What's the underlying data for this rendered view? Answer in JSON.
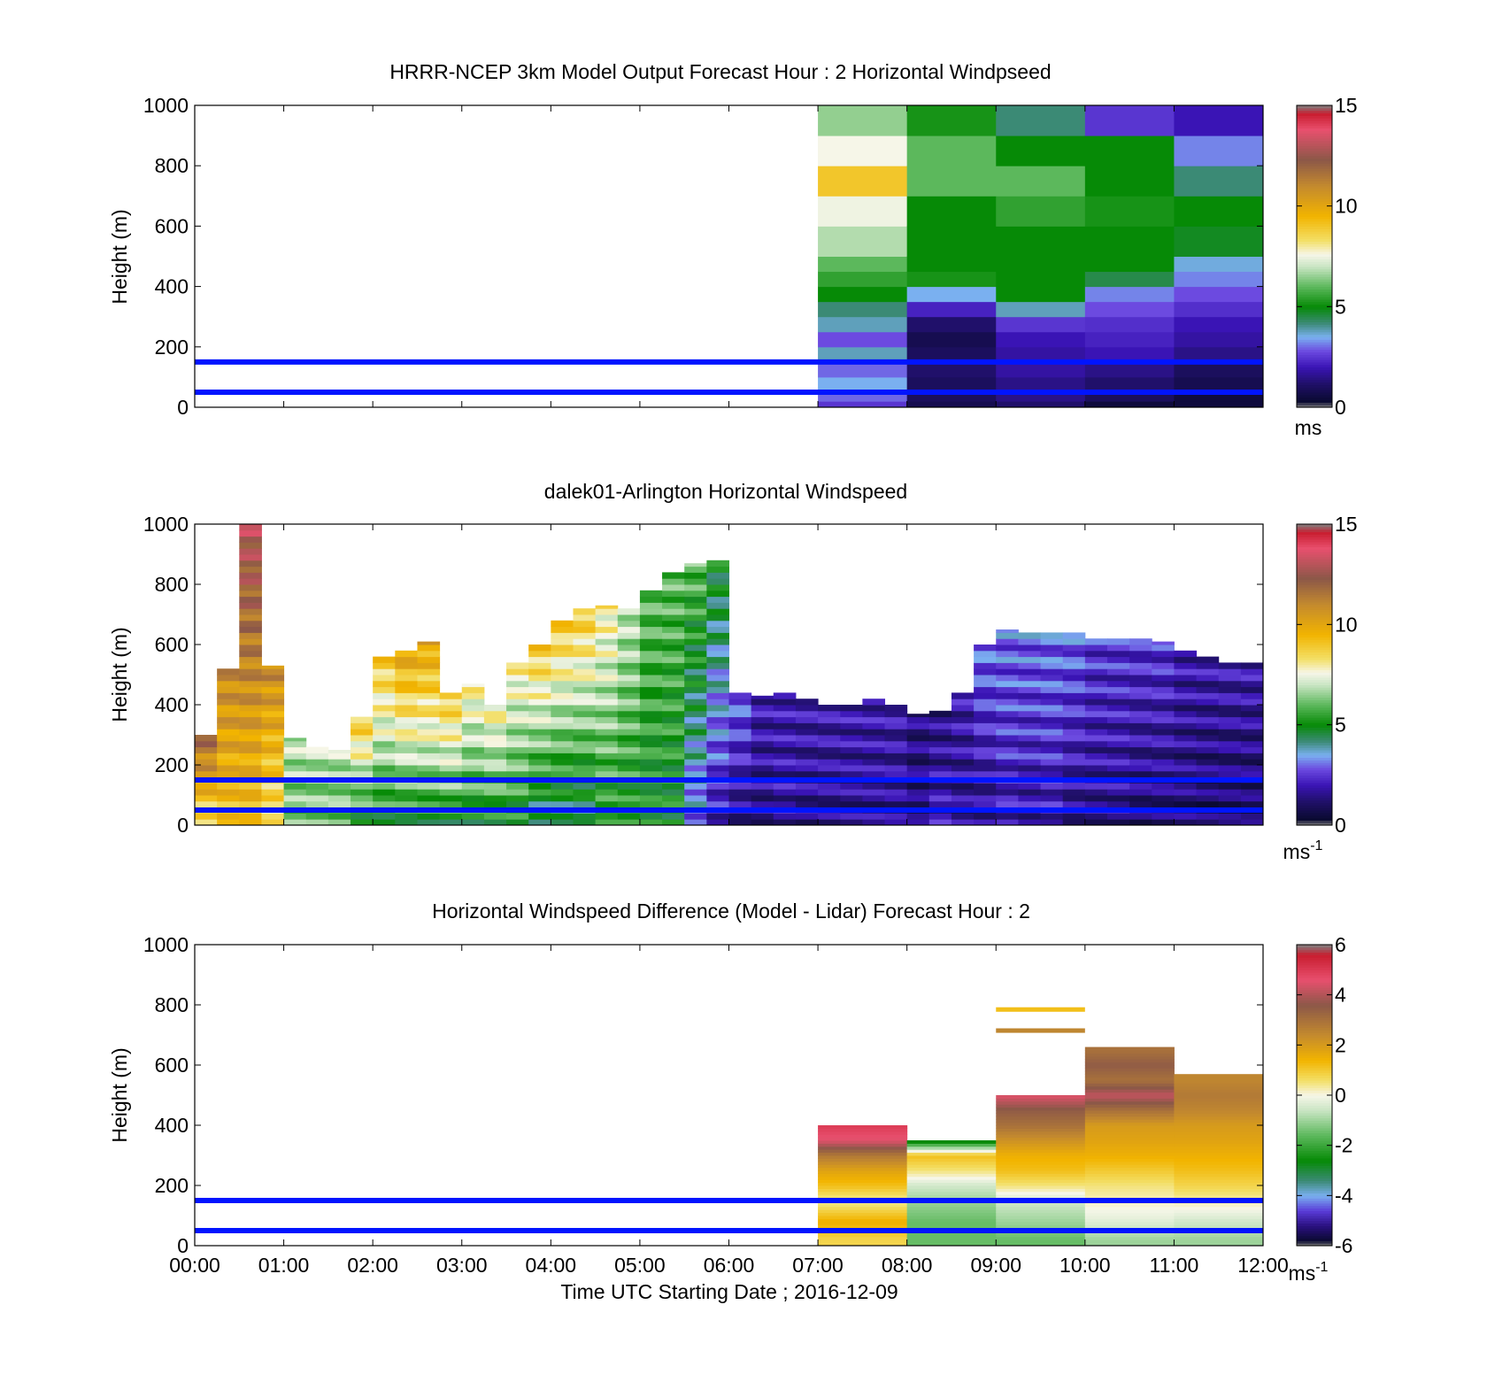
{
  "figure": {
    "xlabel": "Time UTC  Starting Date ; 2016-12-09",
    "ref_lines_color": "#0014ff"
  },
  "chart_data": [
    {
      "type": "heatmap",
      "title": "HRRR-NCEP 3km Model Output   Forecast Hour : 2 Horizontal Windpseed",
      "xlabel": "",
      "ylabel": "Height (m)",
      "xlim": [
        "00:00",
        "12:00"
      ],
      "ylim": [
        0,
        1000
      ],
      "x_ticks": [
        "00:00",
        "01:00",
        "02:00",
        "03:00",
        "04:00",
        "05:00",
        "06:00",
        "07:00",
        "08:00",
        "09:00",
        "10:00",
        "11:00",
        "12:00"
      ],
      "y_ticks": [
        "0",
        "200",
        "400",
        "600",
        "800",
        "1000"
      ],
      "grid": false,
      "reference_lines_m": [
        50,
        150
      ],
      "colorbar": {
        "min": 0,
        "max": 15,
        "ticks": [
          "0",
          "5",
          "10",
          "15"
        ],
        "unit": "ms",
        "unit_sup": ""
      },
      "hourly_columns": {
        "x_start": [
          "07:00",
          "08:00",
          "09:00",
          "10:00",
          "11:00"
        ],
        "height_edges_m": [
          0,
          20,
          50,
          100,
          150,
          200,
          250,
          300,
          350,
          400,
          450,
          500,
          600,
          700,
          800,
          900,
          1000
        ],
        "values_ms": [
          [
            2.5,
            3.0,
            3.5,
            3.0,
            3.8,
            2.8,
            3.8,
            4.2,
            5.0,
            5.5,
            6.0,
            6.8,
            7.5,
            9.0,
            7.6,
            6.5
          ],
          [
            0.8,
            1.0,
            1.0,
            1.2,
            1.0,
            0.8,
            1.2,
            2.2,
            3.5,
            5.2,
            5.0,
            5.0,
            5.0,
            6.0,
            6.0,
            5.2
          ],
          [
            1.2,
            1.5,
            1.5,
            1.8,
            1.8,
            2.0,
            2.5,
            3.8,
            5.0,
            5.0,
            5.0,
            5.0,
            5.5,
            6.0,
            5.0,
            4.2
          ],
          [
            0.5,
            1.0,
            1.2,
            1.5,
            2.0,
            2.2,
            2.4,
            2.8,
            3.2,
            4.5,
            5.0,
            5.0,
            5.2,
            5.0,
            5.0,
            2.5
          ],
          [
            0.5,
            0.5,
            0.8,
            1.0,
            1.5,
            1.8,
            2.0,
            2.4,
            2.8,
            3.2,
            3.6,
            4.8,
            5.0,
            4.2,
            3.2,
            2.0
          ]
        ]
      }
    },
    {
      "type": "heatmap",
      "title": "dalek01-Arlington  Horizontal Windspeed",
      "xlabel": "",
      "ylabel": "Height (m)",
      "xlim": [
        "00:00",
        "12:00"
      ],
      "ylim": [
        0,
        1000
      ],
      "x_ticks": [
        "00:00",
        "01:00",
        "02:00",
        "03:00",
        "04:00",
        "05:00",
        "06:00",
        "07:00",
        "08:00",
        "09:00",
        "10:00",
        "11:00",
        "12:00"
      ],
      "y_ticks": [
        "0",
        "200",
        "400",
        "600",
        "800",
        "1000"
      ],
      "grid": false,
      "reference_lines_m": [
        50,
        150
      ],
      "colorbar": {
        "min": 0,
        "max": 15,
        "ticks": [
          "0",
          "5",
          "10",
          "15"
        ],
        "unit": "ms",
        "unit_sup": "-1"
      },
      "profiles_approx": {
        "interval_minutes": 15,
        "x_start": [
          "00:00",
          "00:15",
          "00:30",
          "00:45",
          "01:00",
          "01:15",
          "01:30",
          "01:45",
          "02:00",
          "02:15",
          "02:30",
          "02:45",
          "03:00",
          "03:15",
          "03:30",
          "03:45",
          "04:00",
          "04:15",
          "04:30",
          "04:45",
          "05:00",
          "05:15",
          "05:30",
          "05:45",
          "06:00",
          "06:15",
          "06:30",
          "06:45",
          "07:00",
          "07:15",
          "07:30",
          "07:45",
          "08:00",
          "08:15",
          "08:30",
          "08:45",
          "09:00",
          "09:15",
          "09:30",
          "09:45",
          "10:00",
          "10:15",
          "10:30",
          "10:45",
          "11:00",
          "11:15",
          "11:30",
          "11:45"
        ],
        "top_m": [
          300,
          520,
          1000,
          530,
          290,
          260,
          250,
          360,
          560,
          580,
          610,
          440,
          470,
          400,
          540,
          600,
          680,
          720,
          730,
          720,
          780,
          840,
          870,
          880,
          440,
          430,
          440,
          420,
          400,
          400,
          420,
          400,
          370,
          380,
          440,
          600,
          650,
          640,
          640,
          640,
          620,
          620,
          620,
          610,
          580,
          560,
          540,
          540
        ],
        "bottom_speed_ms": [
          8,
          9,
          9,
          8,
          6,
          6,
          6,
          5,
          5,
          5,
          5,
          5,
          5,
          5,
          5,
          4,
          4,
          4,
          5,
          5,
          5,
          5,
          3,
          2,
          1.5,
          1.5,
          1.8,
          1.5,
          1.5,
          1.5,
          1.5,
          1.5,
          1.2,
          2,
          1.5,
          1.5,
          2,
          1.8,
          2,
          1.5,
          1.5,
          1.5,
          1.2,
          1.2,
          1.2,
          1.0,
          1.0,
          1.0
        ],
        "top_speed_ms": [
          12,
          11,
          13,
          11,
          7,
          7,
          7,
          9,
          9,
          10,
          10,
          9,
          8,
          8,
          8,
          9,
          9,
          9,
          8,
          7,
          6,
          6,
          6,
          5,
          3,
          2,
          2,
          2,
          2,
          2,
          2,
          2,
          1.5,
          1.5,
          2,
          3,
          3,
          3,
          3,
          3,
          2.5,
          2.5,
          2.5,
          2.5,
          2,
          2,
          2,
          2
        ]
      }
    },
    {
      "type": "heatmap",
      "title": "Horizontal Windspeed Difference (Model - Lidar) Forecast Hour : 2",
      "xlabel": "Time UTC  Starting Date ; 2016-12-09",
      "ylabel": "Height (m)",
      "xlim": [
        "00:00",
        "12:00"
      ],
      "ylim": [
        0,
        1000
      ],
      "x_ticks": [
        "00:00",
        "01:00",
        "02:00",
        "03:00",
        "04:00",
        "05:00",
        "06:00",
        "07:00",
        "08:00",
        "09:00",
        "10:00",
        "11:00",
        "12:00"
      ],
      "y_ticks": [
        "0",
        "200",
        "400",
        "600",
        "800",
        "1000"
      ],
      "grid": false,
      "reference_lines_m": [
        50,
        150
      ],
      "colorbar": {
        "min": -6,
        "max": 6,
        "ticks": [
          "-6",
          "-4",
          "-2",
          "0",
          "2",
          "4",
          "6"
        ],
        "unit": "ms",
        "unit_sup": "-1"
      },
      "hourly_columns": {
        "x_start": [
          "07:00",
          "08:00",
          "09:00",
          "10:00",
          "11:00"
        ],
        "top_m": [
          400,
          350,
          500,
          660,
          570
        ],
        "profiles": [
          {
            "heights_m": [
              20,
              80,
              150,
              200,
              250,
              300,
              350,
              400
            ],
            "values_ms": [
              0.8,
              1.5,
              0.3,
              1.2,
              1.8,
              2.8,
              4.5,
              5.0
            ]
          },
          {
            "heights_m": [
              20,
              80,
              150,
              200,
              250,
              300,
              350
            ],
            "values_ms": [
              -1.5,
              -1.5,
              -1.0,
              -0.5,
              0.5,
              1.2,
              -3.0
            ]
          },
          {
            "heights_m": [
              20,
              80,
              150,
              200,
              250,
              300,
              350,
              400,
              450,
              500
            ],
            "values_ms": [
              -1.5,
              -1.0,
              -0.5,
              0.5,
              1.2,
              1.5,
              2.2,
              3.0,
              3.5,
              4.5
            ]
          },
          {
            "heights_m": [
              20,
              80,
              150,
              200,
              250,
              300,
              350,
              400,
              450,
              500,
              550,
              600,
              650
            ],
            "values_ms": [
              -1.0,
              -0.3,
              0.2,
              0.5,
              1.0,
              1.5,
              1.8,
              2.0,
              3.0,
              4.2,
              3.0,
              3.5,
              3.0
            ]
          },
          {
            "heights_m": [
              20,
              80,
              150,
              200,
              250,
              300,
              350,
              400,
              450,
              500,
              550
            ],
            "values_ms": [
              -1.0,
              -0.5,
              0.3,
              0.8,
              1.2,
              1.5,
              1.8,
              2.0,
              2.5,
              2.8,
              2.5
            ]
          }
        ],
        "isolated_segments": [
          {
            "x_start": "09:00",
            "height_m": 780,
            "value_ms": 1.2
          },
          {
            "x_start": "09:00",
            "height_m": 710,
            "value_ms": 2.5
          }
        ]
      }
    }
  ],
  "colors": {
    "windspeed_colormap": [
      {
        "v": 0.0,
        "c": "#808080"
      },
      {
        "v": 0.3,
        "c": "#0a0a30"
      },
      {
        "v": 1.2,
        "c": "#20106a"
      },
      {
        "v": 2.0,
        "c": "#3a14b5"
      },
      {
        "v": 2.8,
        "c": "#6c4ae0"
      },
      {
        "v": 3.5,
        "c": "#7ab0f0"
      },
      {
        "v": 4.2,
        "c": "#3b8a75"
      },
      {
        "v": 5.0,
        "c": "#068a06"
      },
      {
        "v": 6.0,
        "c": "#5cb85c"
      },
      {
        "v": 7.0,
        "c": "#c9e5c3"
      },
      {
        "v": 7.6,
        "c": "#f6f6e8"
      },
      {
        "v": 8.3,
        "c": "#f3df66"
      },
      {
        "v": 9.5,
        "c": "#f2b400"
      },
      {
        "v": 11.0,
        "c": "#c48a2e"
      },
      {
        "v": 12.3,
        "c": "#8c5848"
      },
      {
        "v": 13.8,
        "c": "#e8506e"
      },
      {
        "v": 14.6,
        "c": "#c81d2f"
      },
      {
        "v": 15.0,
        "c": "#808080"
      }
    ],
    "difference_colormap": [
      {
        "v": -6.0,
        "c": "#808080"
      },
      {
        "v": -5.8,
        "c": "#0a0a30"
      },
      {
        "v": -5.2,
        "c": "#2a1080"
      },
      {
        "v": -4.6,
        "c": "#5a3cd8"
      },
      {
        "v": -4.0,
        "c": "#7ab0f0"
      },
      {
        "v": -3.4,
        "c": "#3b8a75"
      },
      {
        "v": -2.6,
        "c": "#068a06"
      },
      {
        "v": -1.6,
        "c": "#5cb85c"
      },
      {
        "v": -0.6,
        "c": "#c9e5c3"
      },
      {
        "v": 0.0,
        "c": "#f6f6e8"
      },
      {
        "v": 0.6,
        "c": "#f3df66"
      },
      {
        "v": 1.4,
        "c": "#f2b400"
      },
      {
        "v": 2.4,
        "c": "#c48a2e"
      },
      {
        "v": 3.6,
        "c": "#8c5848"
      },
      {
        "v": 4.6,
        "c": "#e8506e"
      },
      {
        "v": 5.6,
        "c": "#c81d2f"
      },
      {
        "v": 6.0,
        "c": "#808080"
      }
    ]
  }
}
